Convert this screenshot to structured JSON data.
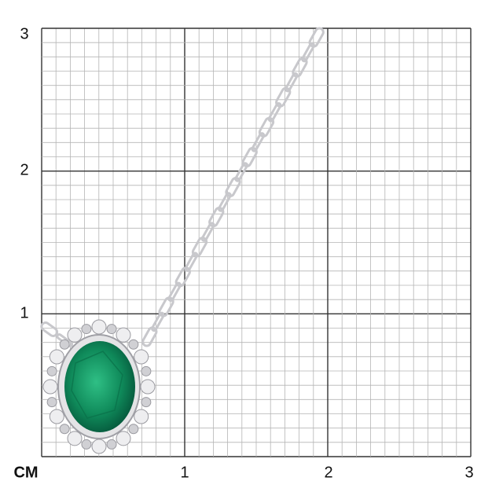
{
  "scale": {
    "unit_label": "CM",
    "x_ticks": [
      "1",
      "2",
      "3"
    ],
    "y_ticks": [
      "1",
      "2",
      "3"
    ],
    "minor_divisions_per_unit": 10
  },
  "product": {
    "type": "pendant necklace",
    "stone_color": "#0f8a5a",
    "metal_color": "#c8c8cc"
  },
  "colors": {
    "minor_grid": "#b5b5b5",
    "major_grid": "#333333"
  }
}
